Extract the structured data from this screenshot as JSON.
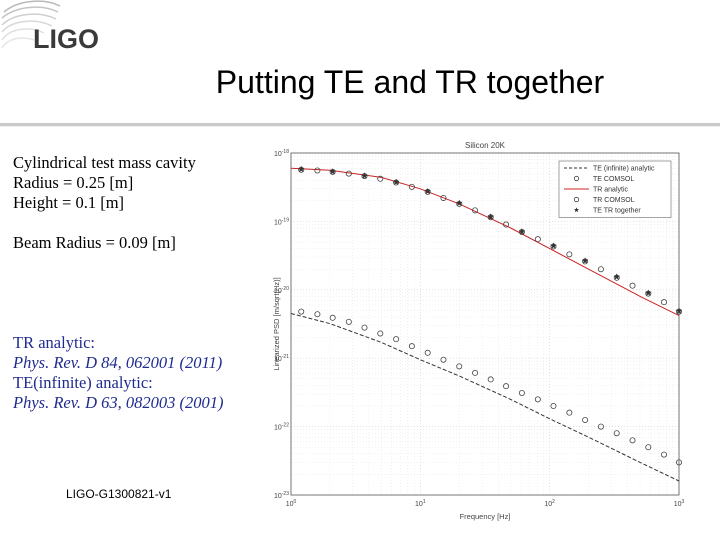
{
  "slide": {
    "logo_text": "LIGO",
    "title": "Putting TE and TR together",
    "params": [
      "Cylindrical test mass cavity",
      "Radius = 0.25 [m]",
      "Height = 0.1 [m]",
      "Beam Radius = 0.09 [m]"
    ],
    "refs": [
      {
        "label": "TR analytic:",
        "citation": "Phys. Rev. D 84, 062001 (2011)"
      },
      {
        "label": "TE(infinite) analytic:",
        "citation": "Phys. Rev. D 63, 082003 (2001)"
      }
    ],
    "footer": "LIGO-G1300821-v1"
  },
  "colors": {
    "red_line": "#cc2222",
    "text_blue": "#1f2b8f",
    "axis": "#555555"
  },
  "chart_data": {
    "type": "line",
    "title": "Silicon 20K",
    "xlabel": "Frequency [Hz]",
    "ylabel": "Linearized PSD [m/sqrt(Hz)]",
    "x_scale": "log",
    "y_scale": "log",
    "xlim": [
      1,
      1000
    ],
    "ylim": [
      1e-23,
      1e-18
    ],
    "x_ticks": [
      {
        "v": 1,
        "label": "10^0"
      },
      {
        "v": 10,
        "label": "10^1"
      },
      {
        "v": 100,
        "label": "10^2"
      },
      {
        "v": 1000,
        "label": "10^3"
      }
    ],
    "y_ticks": [
      {
        "v": 1e-23,
        "label": "10^-23"
      },
      {
        "v": 1e-22,
        "label": "10^-22"
      },
      {
        "v": 1e-21,
        "label": "10^-21"
      },
      {
        "v": 1e-20,
        "label": "10^-20"
      },
      {
        "v": 1e-19,
        "label": "10^-19"
      },
      {
        "v": 1e-18,
        "label": "10^-18"
      }
    ],
    "legend_position": "top-right",
    "legend": [
      "TE (infinite) analytic",
      "TE COMSOL",
      "TR analytic",
      "TR COMSOL",
      "TE TR together"
    ],
    "series": [
      {
        "name": "TE (infinite) analytic",
        "style": "dashed",
        "color": "#333333",
        "x": [
          1,
          2,
          5,
          10,
          20,
          50,
          100,
          200,
          500,
          1000
        ],
        "y": [
          4.5e-21,
          3.2e-21,
          1.7e-21,
          9.5e-22,
          5.5e-22,
          2.5e-22,
          1.3e-22,
          7e-23,
          3e-23,
          1.6e-23
        ]
      },
      {
        "name": "TE COMSOL",
        "style": "markers",
        "marker": "circle",
        "x": [
          1.2,
          1.6,
          2.1,
          2.8,
          3.7,
          4.9,
          6.5,
          8.6,
          11.4,
          15.1,
          20,
          26.5,
          35,
          46,
          61,
          81,
          107,
          142,
          188,
          249,
          330,
          437,
          579,
          766,
          1000
        ],
        "y": [
          4.8e-21,
          4.4e-21,
          3.9e-21,
          3.4e-21,
          2.8e-21,
          2.3e-21,
          1.9e-21,
          1.5e-21,
          1.2e-21,
          9.5e-22,
          7.6e-22,
          6.1e-22,
          4.9e-22,
          3.9e-22,
          3.1e-22,
          2.5e-22,
          2e-22,
          1.6e-22,
          1.25e-22,
          1e-22,
          8e-23,
          6.3e-23,
          5e-23,
          3.9e-23,
          3e-23
        ]
      },
      {
        "name": "TR analytic",
        "style": "solid",
        "color": "#cc2222",
        "x": [
          1,
          2,
          5,
          10,
          20,
          50,
          100,
          200,
          500,
          1000
        ],
        "y": [
          6e-19,
          5.6e-19,
          4.4e-19,
          3e-19,
          1.8e-19,
          8e-20,
          4e-20,
          2e-20,
          8e-21,
          4.2e-21
        ]
      },
      {
        "name": "TR COMSOL",
        "style": "markers",
        "marker": "circle",
        "x": [
          1.2,
          1.6,
          2.1,
          2.8,
          3.7,
          4.9,
          6.5,
          8.6,
          11.4,
          15.1,
          20,
          26.5,
          35,
          46,
          61,
          81,
          107,
          142,
          188,
          249,
          330,
          437,
          579,
          766,
          1000
        ],
        "y": [
          5.7e-19,
          5.55e-19,
          5.3e-19,
          5e-19,
          4.6e-19,
          4.2e-19,
          3.7e-19,
          3.2e-19,
          2.7e-19,
          2.2e-19,
          1.8e-19,
          1.45e-19,
          1.15e-19,
          9e-20,
          7e-20,
          5.5e-20,
          4.3e-20,
          3.3e-20,
          2.6e-20,
          2e-20,
          1.5e-20,
          1.15e-20,
          8.8e-21,
          6.6e-21,
          4.8e-21
        ]
      },
      {
        "name": "TE TR together",
        "style": "markers",
        "marker": "star",
        "x": [
          1.2,
          2.1,
          3.7,
          6.5,
          11.4,
          20,
          35,
          61,
          107,
          188,
          330,
          579,
          1000
        ],
        "y": [
          5.8e-19,
          5.35e-19,
          4.65e-19,
          3.75e-19,
          2.75e-19,
          1.85e-19,
          1.17e-19,
          7.1e-20,
          4.4e-20,
          2.65e-20,
          1.55e-20,
          9e-21,
          4.9e-21
        ]
      }
    ]
  }
}
